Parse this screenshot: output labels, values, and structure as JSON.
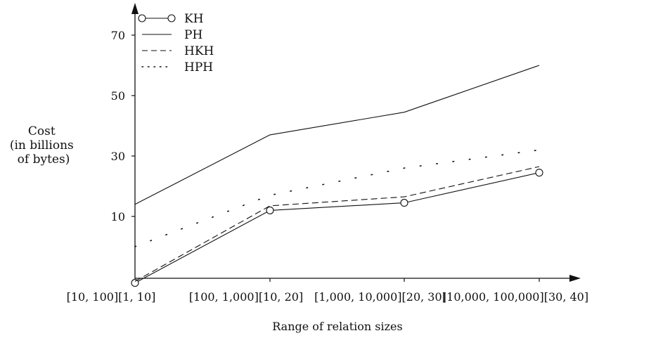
{
  "chart_data": {
    "type": "line",
    "title": "",
    "xlabel": "Range of relation sizes",
    "ylabel": [
      "Cost",
      "(in billions",
      "of bytes)"
    ],
    "categories": [
      "[10, 100][1, 10]",
      "[100, 1,000][10, 20]",
      "[1,000, 10,000][20, 30]",
      "[10,000, 100,000][30, 40]"
    ],
    "yticks": [
      10,
      30,
      50,
      70
    ],
    "ylim": [
      -10,
      80
    ],
    "grid": false,
    "legend_position": "top-left",
    "series": [
      {
        "name": "KH",
        "style": "line-circle",
        "values": [
          -12,
          12,
          14.5,
          24.5
        ]
      },
      {
        "name": "PH",
        "style": "solid",
        "values": [
          14,
          37,
          44.5,
          60
        ]
      },
      {
        "name": "HKH",
        "style": "dashed",
        "values": [
          -11.5,
          13.5,
          16.5,
          26.5
        ]
      },
      {
        "name": "HPH",
        "style": "dotted",
        "values": [
          0,
          17,
          26,
          32
        ]
      }
    ]
  }
}
